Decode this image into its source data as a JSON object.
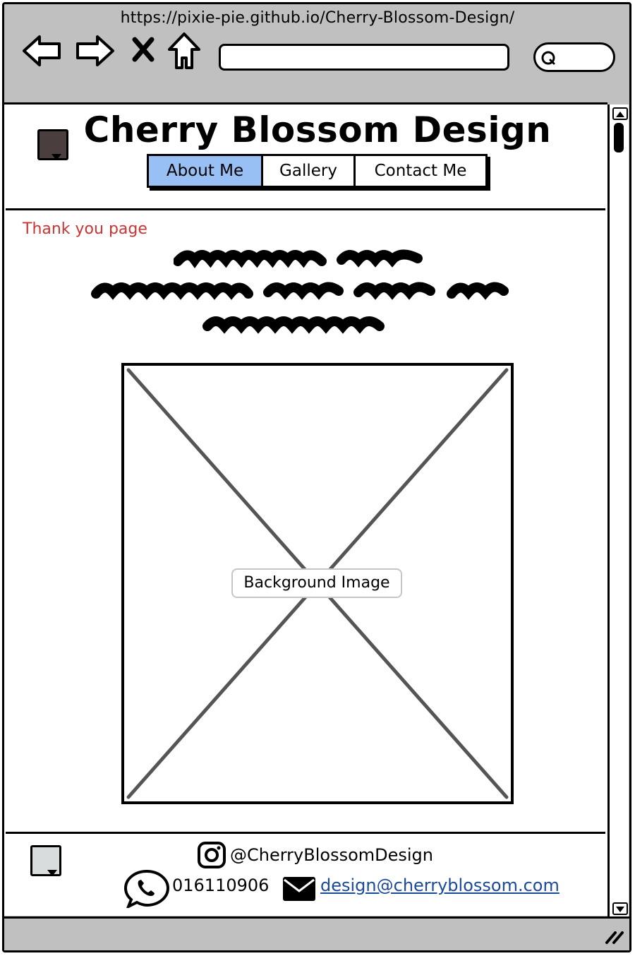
{
  "browser": {
    "url": "https://pixie-pie.github.io/Cherry-Blossom-Design/",
    "address_value": "",
    "search_value": ""
  },
  "site": {
    "title": "Cherry Blossom Design",
    "nav": [
      "About Me",
      "Gallery",
      "Contact Me"
    ],
    "active_nav": "About Me",
    "active_color": "#99c0f5"
  },
  "page": {
    "annotation": "Thank you page",
    "annotation_color": "#cc3333",
    "image_label": "Background Image"
  },
  "footer": {
    "instagram": "@CherryBlossomDesign",
    "phone": "016110906",
    "email": "design@cherryblossom.com"
  }
}
